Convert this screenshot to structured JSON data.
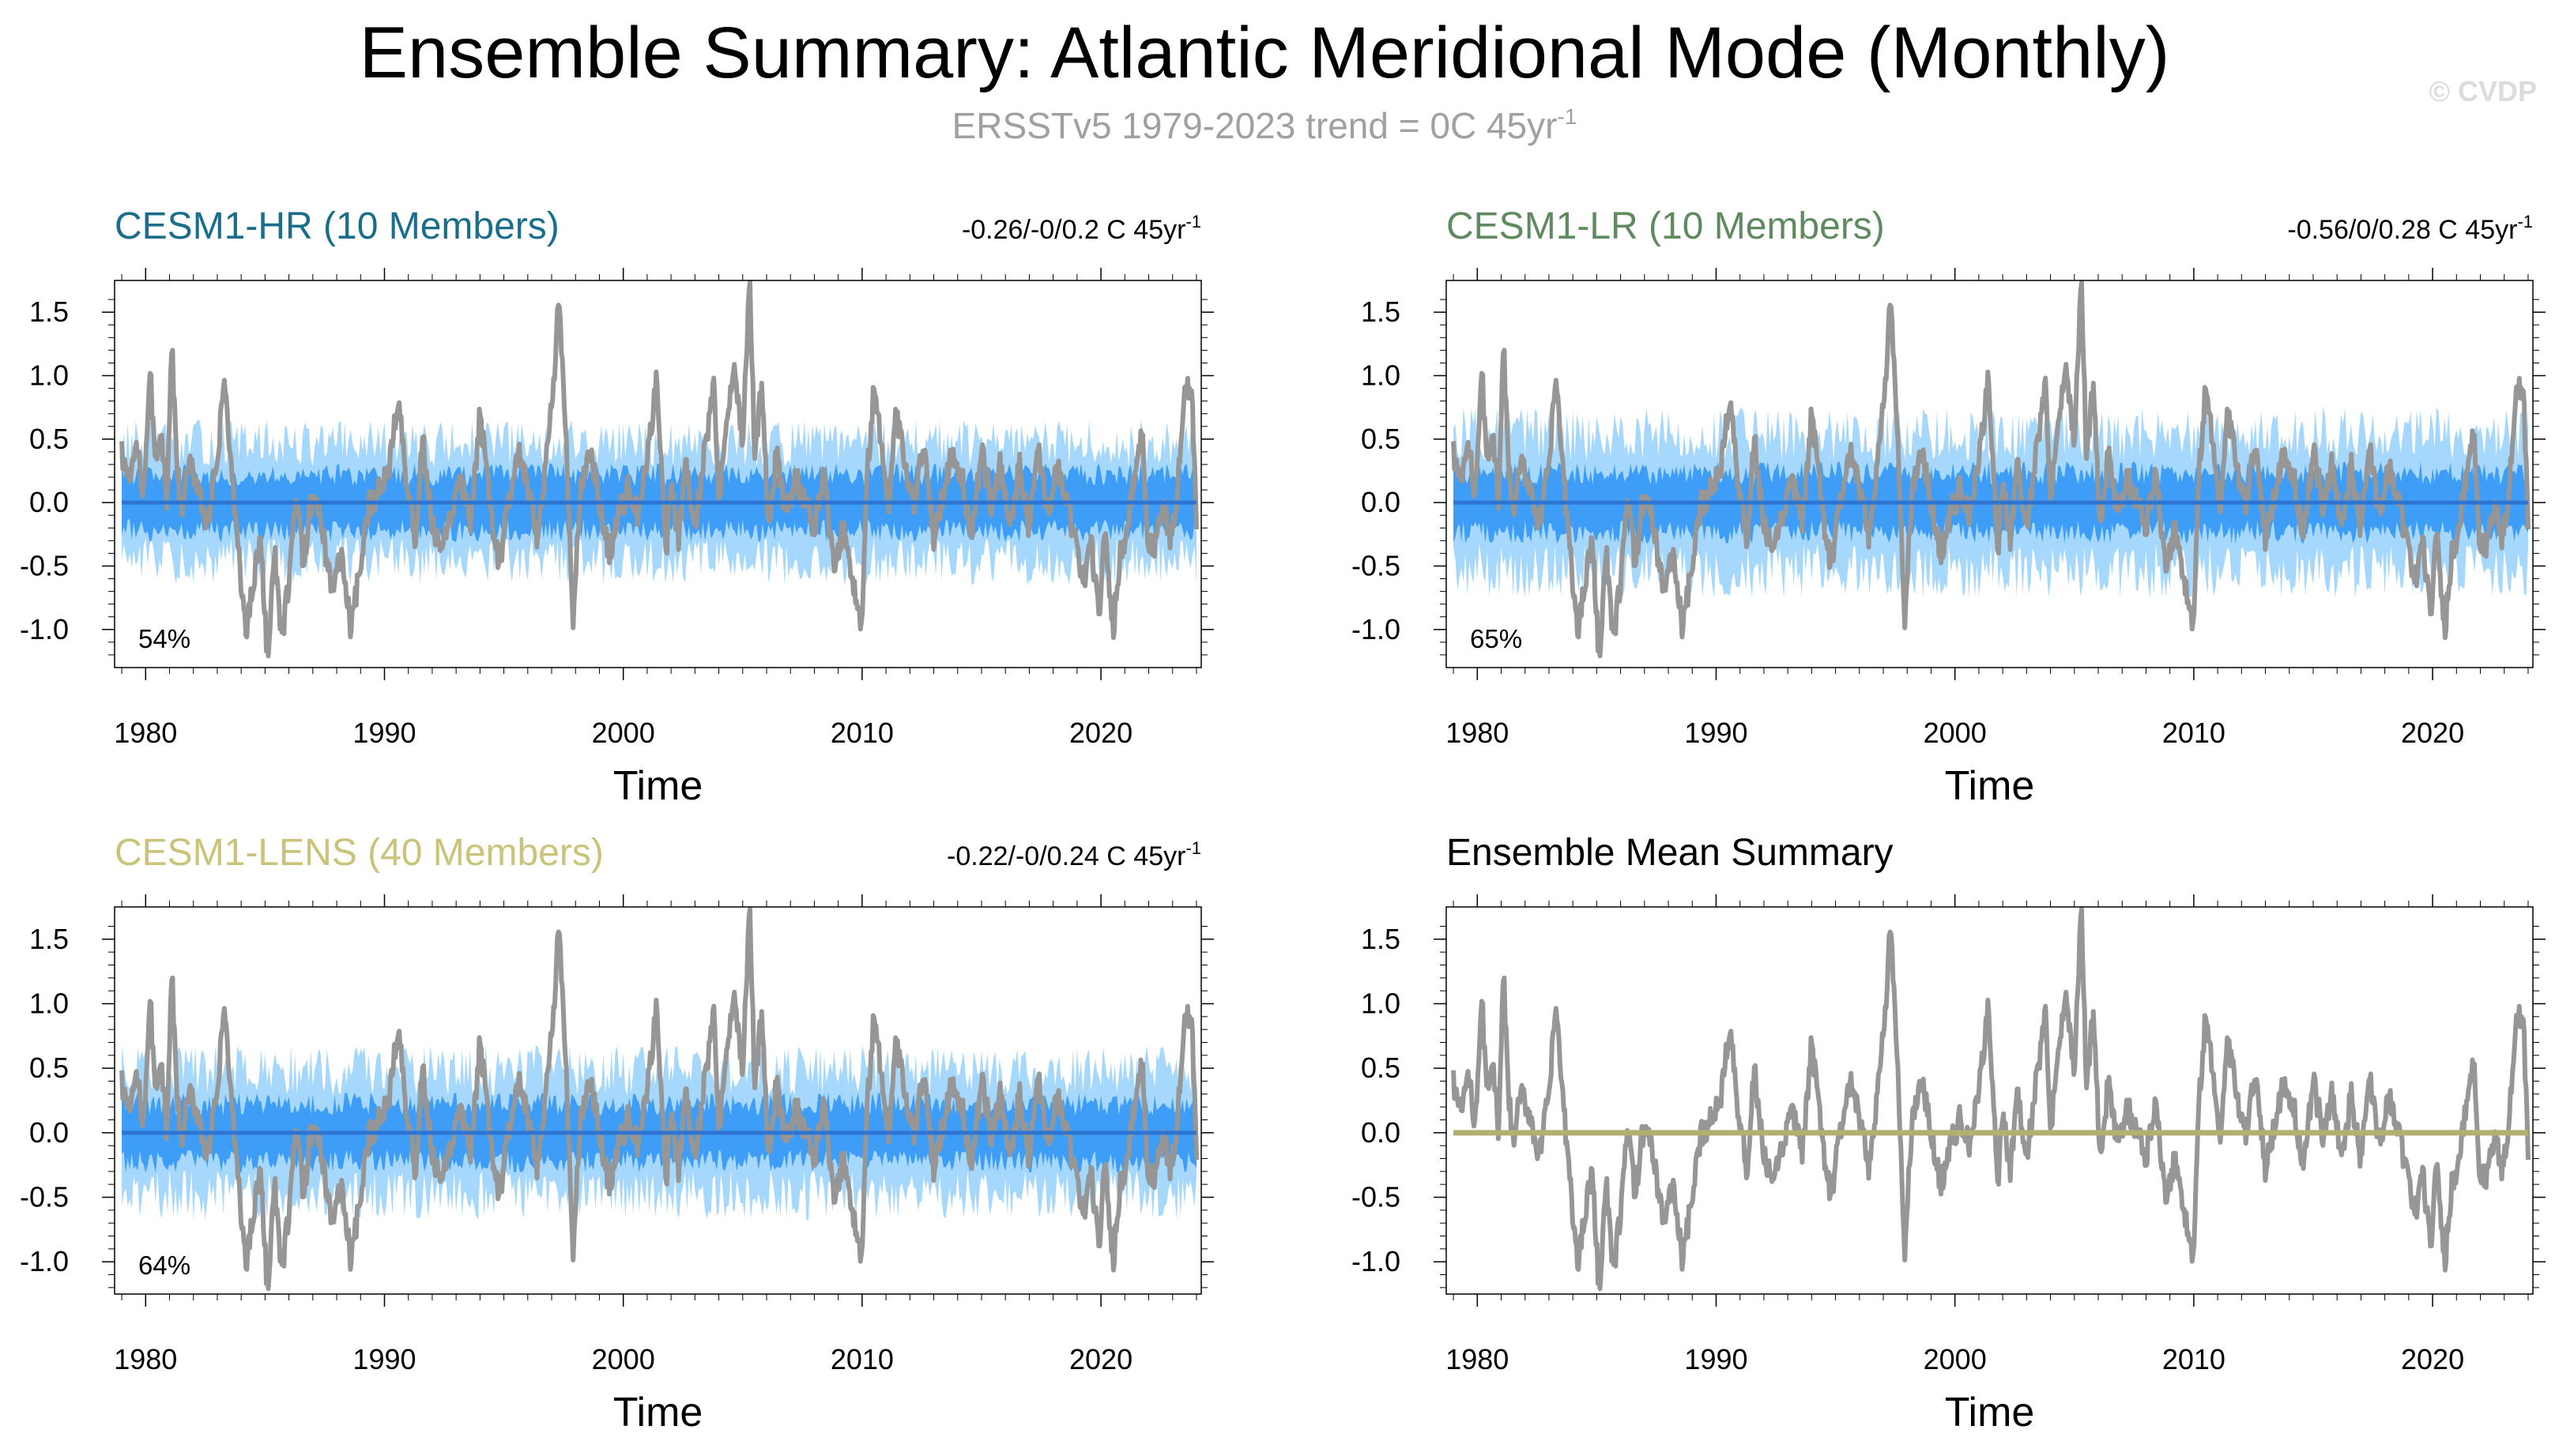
{
  "header": {
    "title": "Ensemble Summary: Atlantic Meridional Mode (Monthly)",
    "subtitle_main": "ERSSTv5 1979-2023 trend = 0C 45yr",
    "subtitle_sup": "-1",
    "watermark": "© CVDP"
  },
  "colors": {
    "observed": "#969696",
    "band_outer": "#a6d8fd",
    "band_inner": "#3d9df7",
    "mean_line": "#2e74d1",
    "summary_line": "#b0b070",
    "hr_title": "#1a6e8c",
    "lr_title": "#5f8a5f",
    "lens_title": "#c9c47a"
  },
  "chart_data": [
    {
      "type": "line",
      "title": "CESM1-HR (10 Members)",
      "trend_text": "-0.26/-0/0.2 C 45yr",
      "trend_sup": "-1",
      "percent": "54%",
      "xlabel": "Time",
      "xlim": [
        1978.7,
        2024.2
      ],
      "ylim": [
        -1.3,
        1.75
      ],
      "xticks": [
        "1980",
        "1990",
        "2000",
        "2010",
        "2020"
      ],
      "yticks": [
        "1.5",
        "1.0",
        "0.5",
        "0.0",
        "-0.5",
        "-1.0"
      ],
      "series": [
        {
          "name": "",
          "x": [
            1979,
            2024
          ],
          "values": [
            0.0,
            0.0
          ]
        }
      ],
      "band_outer_half_width": 0.5,
      "band_inner_half_width": 0.24
    },
    {
      "type": "line",
      "title": "CESM1-LR (10 Members)",
      "trend_text": "-0.56/0/0.28 C 45yr",
      "trend_sup": "-1",
      "percent": "65%",
      "xlabel": "Time",
      "xlim": [
        1978.7,
        2024.2
      ],
      "ylim": [
        -1.3,
        1.75
      ],
      "xticks": [
        "1980",
        "1990",
        "2000",
        "2010",
        "2020"
      ],
      "yticks": [
        "1.5",
        "1.0",
        "0.5",
        "0.0",
        "-0.5",
        "-1.0"
      ],
      "series": [
        {
          "name": "",
          "x": [
            1979,
            2024
          ],
          "values": [
            0.0,
            0.0
          ]
        }
      ],
      "band_outer_half_width": 0.58,
      "band_inner_half_width": 0.25
    },
    {
      "type": "line",
      "title": "CESM1-LENS (40 Members)",
      "trend_text": "-0.22/-0/0.24 C 45yr",
      "trend_sup": "-1",
      "percent": "64%",
      "xlabel": "Time",
      "xlim": [
        1978.7,
        2024.2
      ],
      "ylim": [
        -1.25,
        1.75
      ],
      "xticks": [
        "1980",
        "1990",
        "2000",
        "2010",
        "2020"
      ],
      "yticks": [
        "1.5",
        "1.0",
        "0.5",
        "0.0",
        "-0.5",
        "-1.0"
      ],
      "series": [
        {
          "name": "",
          "x": [
            1979,
            2024
          ],
          "values": [
            0.0,
            0.0
          ]
        }
      ],
      "band_outer_half_width": 0.52,
      "band_inner_half_width": 0.24
    },
    {
      "type": "line",
      "title": "Ensemble Mean Summary",
      "trend_text": "",
      "trend_sup": "",
      "percent": "",
      "xlabel": "Time",
      "xlim": [
        1978.7,
        2024.2
      ],
      "ylim": [
        -1.25,
        1.75
      ],
      "xticks": [
        "1980",
        "1990",
        "2000",
        "2010",
        "2020"
      ],
      "yticks": [
        "1.5",
        "1.0",
        "0.5",
        "0.0",
        "-0.5",
        "-1.0"
      ],
      "series": [
        {
          "name": "",
          "x": [
            1979,
            2024
          ],
          "values": [
            0.0,
            0.0
          ]
        }
      ]
    }
  ],
  "observed_series": {
    "name": "",
    "x": [
      1979.0,
      1979.3,
      1979.6,
      1979.9,
      1980.2,
      1980.4,
      1980.6,
      1980.9,
      1981.1,
      1981.3,
      1981.5,
      1981.8,
      1982.2,
      1982.6,
      1983.0,
      1983.3,
      1983.6,
      1983.9,
      1984.2,
      1984.5,
      1984.8,
      1985.1,
      1985.4,
      1985.7,
      1986.0,
      1986.3,
      1986.6,
      1987.0,
      1987.4,
      1987.8,
      1988.2,
      1988.6,
      1989.0,
      1989.4,
      1989.8,
      1990.2,
      1990.6,
      1990.9,
      1991.3,
      1991.6,
      1992.0,
      1992.4,
      1992.8,
      1993.2,
      1993.6,
      1994.0,
      1994.4,
      1994.8,
      1995.2,
      1995.6,
      1996.0,
      1996.4,
      1996.8,
      1997.1,
      1997.3,
      1997.6,
      1997.9,
      1998.2,
      1998.6,
      1999.0,
      1999.4,
      1999.8,
      2000.2,
      2000.6,
      2001.0,
      2001.4,
      2001.8,
      2002.0,
      2002.3,
      2002.6,
      2003.0,
      2003.4,
      2003.8,
      2004.0,
      2004.3,
      2004.6,
      2005.0,
      2005.3,
      2005.5,
      2005.8,
      2006.1,
      2006.4,
      2006.8,
      2007.2,
      2007.6,
      2008.0,
      2008.4,
      2008.8,
      2009.2,
      2009.6,
      2010.0,
      2010.2,
      2010.5,
      2010.8,
      2011.1,
      2011.4,
      2011.8,
      2012.2,
      2012.6,
      2013.0,
      2013.4,
      2013.8,
      2014.2,
      2014.6,
      2015.0,
      2015.4,
      2015.8,
      2016.2,
      2016.6,
      2017.0,
      2017.4,
      2017.8,
      2018.2,
      2018.6,
      2019.0,
      2019.3,
      2019.6,
      2019.9,
      2020.2,
      2020.5,
      2020.8,
      2021.1,
      2021.4,
      2021.7,
      2022.0,
      2022.3,
      2022.6,
      2022.9,
      2023.2,
      2023.5,
      2023.8,
      2024.0
    ],
    "values": [
      0.4,
      0.15,
      0.45,
      0.1,
      1.0,
      0.3,
      0.6,
      0.0,
      1.25,
      0.3,
      -0.1,
      0.3,
      0.15,
      -0.2,
      0.3,
      1.0,
      0.2,
      -0.4,
      -1.05,
      -0.6,
      -0.3,
      -1.2,
      -0.4,
      -1.1,
      -0.6,
      0.05,
      -0.5,
      0.1,
      -0.2,
      -0.7,
      -0.4,
      -1.0,
      -0.5,
      0.0,
      0.1,
      0.3,
      0.9,
      0.2,
      -0.3,
      0.5,
      -0.2,
      -0.4,
      -0.1,
      0.2,
      -0.2,
      0.7,
      0.0,
      -0.5,
      0.0,
      0.4,
      0.1,
      -0.3,
      0.4,
      1.0,
      1.6,
      0.5,
      -0.95,
      0.1,
      0.4,
      0.0,
      -0.4,
      -0.1,
      0.1,
      -0.1,
      0.3,
      1.0,
      -0.4,
      0.2,
      -0.3,
      0.3,
      -0.2,
      0.4,
      0.9,
      0.0,
      0.6,
      1.1,
      0.5,
      1.75,
      0.4,
      0.9,
      -0.3,
      0.4,
      -0.1,
      0.2,
      0.0,
      -0.2,
      0.3,
      -0.5,
      -0.2,
      -0.6,
      -1.0,
      0.2,
      0.9,
      0.5,
      -0.1,
      0.7,
      0.3,
      0.0,
      0.5,
      -0.3,
      0.1,
      0.4,
      0.2,
      -0.3,
      0.4,
      0.0,
      0.3,
      -0.2,
      0.3,
      -0.2,
      0.4,
      -0.1,
      0.3,
      0.0,
      -0.4,
      -0.6,
      -0.3,
      -0.9,
      -0.2,
      -1.05,
      -0.4,
      -0.2,
      0.2,
      0.6,
      -0.4,
      -0.3,
      0.0,
      -0.3,
      0.1,
      0.9,
      0.9,
      -0.2
    ]
  },
  "axis_ylabel": ""
}
